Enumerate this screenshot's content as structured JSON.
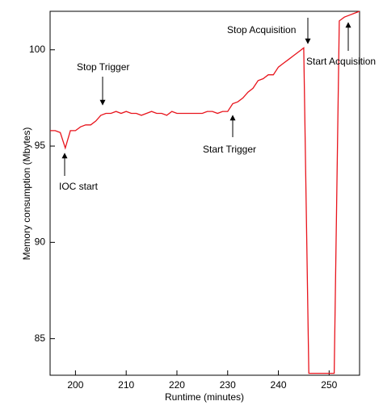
{
  "chart_data": {
    "type": "line",
    "x_label": "Runtime (minutes)",
    "y_label": "Memory consumption (Mbytes)",
    "x": [
      195,
      196,
      197,
      198,
      199,
      200,
      201,
      202,
      203,
      204,
      205,
      206,
      207,
      208,
      209,
      210,
      211,
      212,
      213,
      214,
      215,
      216,
      217,
      218,
      219,
      220,
      221,
      222,
      223,
      224,
      225,
      226,
      227,
      228,
      229,
      230,
      231,
      232,
      233,
      234,
      235,
      236,
      237,
      238,
      239,
      240,
      241,
      242,
      243,
      244,
      245,
      246,
      247,
      248,
      249,
      250,
      251,
      252,
      253,
      254,
      255,
      256
    ],
    "series": [
      {
        "color": "#e8141c",
        "values": [
          95.8,
          95.8,
          95.7,
          94.9,
          95.8,
          95.8,
          96.0,
          96.1,
          96.1,
          96.3,
          96.6,
          96.7,
          96.7,
          96.8,
          96.7,
          96.8,
          96.7,
          96.7,
          96.6,
          96.7,
          96.8,
          96.7,
          96.7,
          96.6,
          96.8,
          96.7,
          96.7,
          96.7,
          96.7,
          96.7,
          96.7,
          96.8,
          96.8,
          96.7,
          96.8,
          96.8,
          97.2,
          97.3,
          97.5,
          97.8,
          98.0,
          98.4,
          98.5,
          98.7,
          98.7,
          99.1,
          99.3,
          99.5,
          99.7,
          99.9,
          100.1,
          83.2,
          83.2,
          83.2,
          83.2,
          83.2,
          83.2,
          101.5,
          101.7,
          101.8,
          101.9,
          102.0
        ]
      }
    ],
    "xlim": [
      195,
      256
    ],
    "ylim": [
      83.1,
      102
    ],
    "xticks": [
      200,
      210,
      220,
      230,
      240,
      250
    ],
    "yticks": [
      85,
      90,
      95,
      100
    ],
    "annotations": [
      "Stop Trigger",
      "IOC start",
      "Start Trigger",
      "Stop Acquisition",
      "Start Acquisition"
    ]
  }
}
